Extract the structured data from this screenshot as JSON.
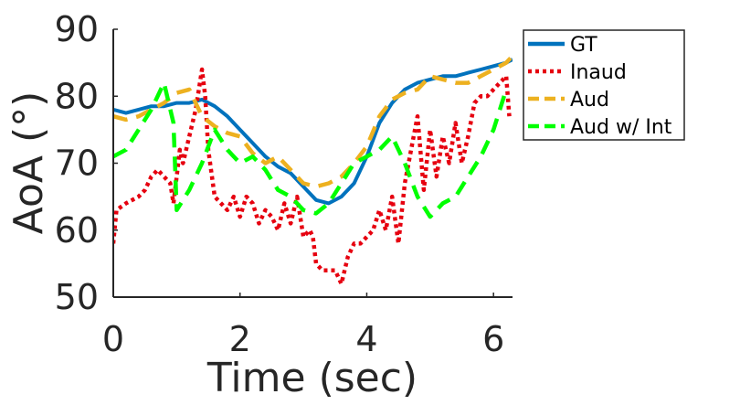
{
  "chart_data": {
    "type": "line",
    "title": "",
    "xlabel": "Time (sec)",
    "ylabel": "AoA (°)",
    "xlim": [
      0,
      6.3
    ],
    "ylim": [
      50,
      90
    ],
    "xticks": [
      0,
      2,
      4,
      6
    ],
    "yticks": [
      50,
      60,
      70,
      80,
      90
    ],
    "grid": false,
    "legend_position": "top-right",
    "series": [
      {
        "name": "GT",
        "color": "#0072BD",
        "style": "solid",
        "x": [
          0,
          0.2,
          0.4,
          0.6,
          0.8,
          1.0,
          1.2,
          1.4,
          1.6,
          1.8,
          2.0,
          2.2,
          2.4,
          2.6,
          2.8,
          3.0,
          3.2,
          3.4,
          3.6,
          3.8,
          4.0,
          4.2,
          4.4,
          4.6,
          4.8,
          5.0,
          5.2,
          5.4,
          5.6,
          5.8,
          6.0,
          6.2,
          6.3
        ],
        "y": [
          78,
          77.5,
          78,
          78.5,
          78.5,
          79,
          79,
          79.5,
          78.5,
          77,
          75,
          73,
          71,
          69.5,
          68.5,
          66.5,
          64.5,
          64,
          65,
          67,
          71,
          76,
          79,
          81,
          82,
          82.5,
          83,
          83,
          83.5,
          84,
          84.5,
          85,
          85.5
        ]
      },
      {
        "name": "Inaud",
        "color": "#E6000F",
        "style": "dotted",
        "x": [
          0,
          0.05,
          0.2,
          0.4,
          0.5,
          0.6,
          0.7,
          0.8,
          0.9,
          0.95,
          1.0,
          1.05,
          1.1,
          1.2,
          1.3,
          1.4,
          1.45,
          1.5,
          1.6,
          1.7,
          1.8,
          1.9,
          2.0,
          2.1,
          2.2,
          2.3,
          2.4,
          2.5,
          2.6,
          2.7,
          2.8,
          2.9,
          3.0,
          3.1,
          3.15,
          3.2,
          3.3,
          3.4,
          3.5,
          3.6,
          3.7,
          3.8,
          3.9,
          4.0,
          4.1,
          4.2,
          4.3,
          4.4,
          4.5,
          4.6,
          4.7,
          4.8,
          4.9,
          5.0,
          5.1,
          5.2,
          5.3,
          5.4,
          5.5,
          5.6,
          5.7,
          5.8,
          5.9,
          6.0,
          6.1,
          6.2,
          6.25
        ],
        "y": [
          58,
          63,
          64,
          65,
          66,
          68,
          69,
          68,
          67,
          64,
          68,
          72,
          70,
          74,
          78,
          84,
          80,
          72,
          65,
          64,
          63,
          65,
          62,
          65,
          64,
          61,
          63,
          62,
          60,
          64,
          61,
          65,
          59,
          60,
          59,
          55,
          54,
          54,
          54,
          52,
          56,
          58,
          58,
          59,
          60,
          63,
          60,
          65,
          58,
          67,
          72,
          77,
          66,
          75,
          68,
          74,
          70,
          76,
          70,
          74,
          79,
          80,
          80,
          81,
          82,
          83,
          77
        ]
      },
      {
        "name": "Aud",
        "color": "#EDB120",
        "style": "dashed",
        "x": [
          0,
          0.2,
          0.4,
          0.6,
          0.8,
          1.0,
          1.2,
          1.4,
          1.6,
          1.8,
          2.0,
          2.2,
          2.4,
          2.6,
          2.8,
          3.0,
          3.2,
          3.4,
          3.6,
          3.8,
          4.0,
          4.2,
          4.4,
          4.6,
          4.8,
          5.0,
          5.2,
          5.4,
          5.6,
          5.8,
          6.0,
          6.2,
          6.3
        ],
        "y": [
          77,
          76.5,
          77,
          78,
          79,
          80.5,
          81,
          77,
          75.5,
          74.5,
          74,
          71.5,
          70,
          71,
          69,
          67,
          66.5,
          67,
          68,
          70,
          72.5,
          77,
          79.5,
          80.5,
          81,
          83,
          82.5,
          82,
          82,
          83,
          84,
          85,
          86
        ]
      },
      {
        "name": "Aud w/ Int",
        "color": "#00FF00",
        "style": "dashed",
        "x": [
          0,
          0.2,
          0.4,
          0.6,
          0.8,
          0.95,
          1.0,
          1.2,
          1.4,
          1.6,
          1.8,
          2.0,
          2.2,
          2.4,
          2.6,
          2.8,
          3.0,
          3.2,
          3.4,
          3.6,
          3.8,
          4.0,
          4.2,
          4.4,
          4.6,
          4.8,
          5.0,
          5.2,
          5.4,
          5.6,
          5.8,
          6.0,
          6.2
        ],
        "y": [
          71,
          72,
          75,
          78,
          82,
          76,
          63,
          66,
          70,
          75,
          72,
          70,
          71,
          69,
          66,
          65,
          63,
          62.5,
          64,
          67,
          70,
          71,
          72,
          74,
          70,
          65,
          62,
          64,
          65,
          68,
          71,
          75,
          81
        ]
      }
    ]
  }
}
